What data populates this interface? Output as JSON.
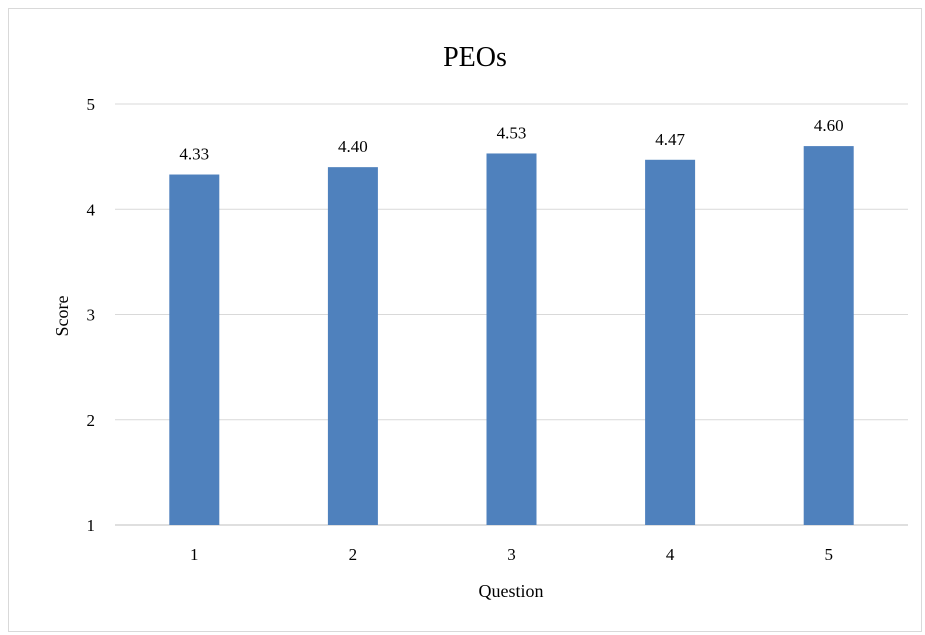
{
  "chart_data": {
    "type": "bar",
    "title": "PEOs",
    "xlabel": "Question",
    "ylabel": "Score",
    "categories": [
      "1",
      "2",
      "3",
      "4",
      "5"
    ],
    "values": [
      4.33,
      4.4,
      4.53,
      4.47,
      4.6
    ],
    "value_labels": [
      "4.33",
      "4.40",
      "4.53",
      "4.47",
      "4.60"
    ],
    "ylim": [
      1,
      5
    ],
    "yticks": [
      "1",
      "2",
      "3",
      "4",
      "5"
    ],
    "grid": true,
    "legend": "none",
    "colors": {
      "bar": "#4f81bd",
      "grid": "#d9d9d9",
      "axis": "#bfbfbf"
    }
  }
}
